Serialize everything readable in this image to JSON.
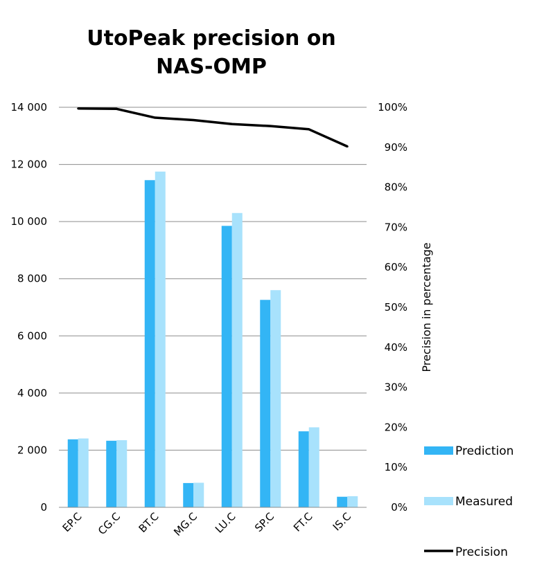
{
  "chart_data": {
    "type": "bar",
    "title_line1": "UtoPeak precision on",
    "title_line2": "NAS-OMP",
    "xlabel": "",
    "ylabel": "",
    "y2label": "Precision in percentage",
    "categories": [
      "EP.C",
      "CG.C",
      "BT.C",
      "MG.C",
      "LU.C",
      "SP.C",
      "FT.C",
      "IS.C"
    ],
    "series": [
      {
        "name": "Prediction",
        "kind": "bar",
        "axis": "left",
        "color": "#33b5f5",
        "values": [
          2380,
          2330,
          11450,
          850,
          9850,
          7260,
          2660,
          370
        ]
      },
      {
        "name": "Measured",
        "kind": "bar",
        "axis": "left",
        "color": "#a8e2fc",
        "values": [
          2410,
          2350,
          11750,
          860,
          10300,
          7600,
          2800,
          390
        ]
      },
      {
        "name": "Precision",
        "kind": "line",
        "axis": "right",
        "color": "#000000",
        "values": [
          99.7,
          99.6,
          97.4,
          96.8,
          95.8,
          95.3,
          94.5,
          90.2
        ]
      }
    ],
    "y_ticks": [
      "0",
      "2 000",
      "4 000",
      "6 000",
      "8 000",
      "10 000",
      "12 000",
      "14 000"
    ],
    "y2_ticks": [
      "0%",
      "10%",
      "20%",
      "30%",
      "40%",
      "50%",
      "60%",
      "70%",
      "80%",
      "90%",
      "100%"
    ],
    "ylim": [
      0,
      14000
    ],
    "y2lim": [
      0,
      100
    ],
    "grid": true,
    "legend": "right"
  }
}
